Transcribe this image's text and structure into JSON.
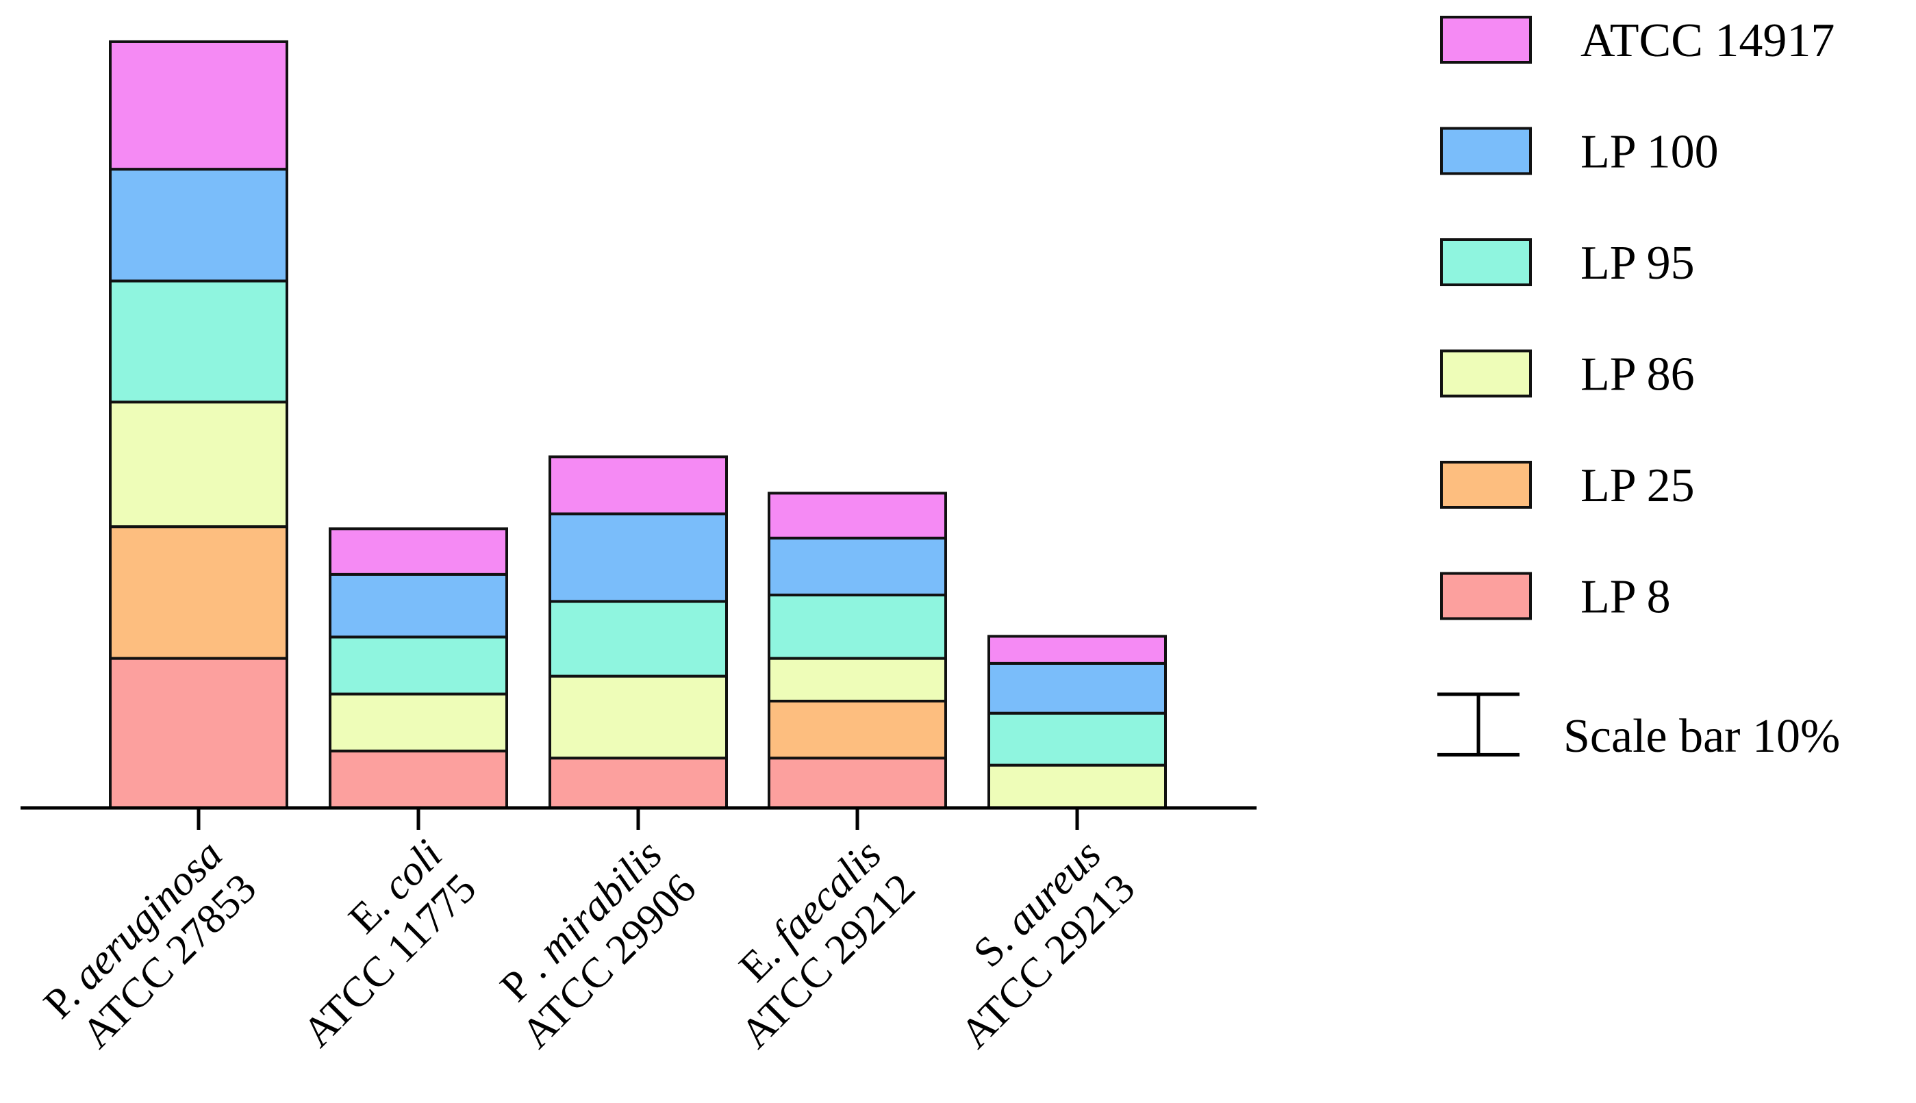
{
  "chart_data": {
    "type": "bar",
    "stacked": true,
    "title": "",
    "xlabel": "",
    "ylabel": "",
    "yaxis_shown": false,
    "grid": false,
    "legend_position": "right",
    "categories": [
      {
        "species": "P. aeruginosa",
        "strain": "ATCC 27853"
      },
      {
        "species": "E. coli",
        "strain": "ATCC 11775"
      },
      {
        "species": "P . mirabilis",
        "strain": "ATCC 29906"
      },
      {
        "species": "E. faecalis",
        "strain": "ATCC  29212"
      },
      {
        "species": "S. aureus",
        "strain": "ATCC 29213"
      }
    ],
    "series": [
      {
        "name": "LP 8",
        "color": "#FCA09E",
        "values": [
          21.0,
          8.0,
          7.0,
          7.0,
          0.0
        ]
      },
      {
        "name": "LP 25",
        "color": "#FDBE7F",
        "values": [
          18.5,
          0.0,
          0.0,
          8.0,
          0.0
        ]
      },
      {
        "name": "LP 86",
        "color": "#EEFDB8",
        "values": [
          17.5,
          8.0,
          11.5,
          6.0,
          6.0
        ]
      },
      {
        "name": "LP 95",
        "color": "#8FF5DF",
        "values": [
          17.0,
          8.0,
          10.5,
          8.9,
          7.3
        ]
      },
      {
        "name": "LP 100",
        "color": "#7ABDFA",
        "values": [
          15.7,
          8.8,
          12.3,
          8.0,
          7.0
        ]
      },
      {
        "name": "ATCC 14917",
        "color": "#F58AF4",
        "values": [
          17.9,
          6.4,
          8.0,
          6.3,
          3.8
        ]
      }
    ],
    "scale_bar": {
      "label": "Scale bar 10%",
      "value": 10
    }
  }
}
